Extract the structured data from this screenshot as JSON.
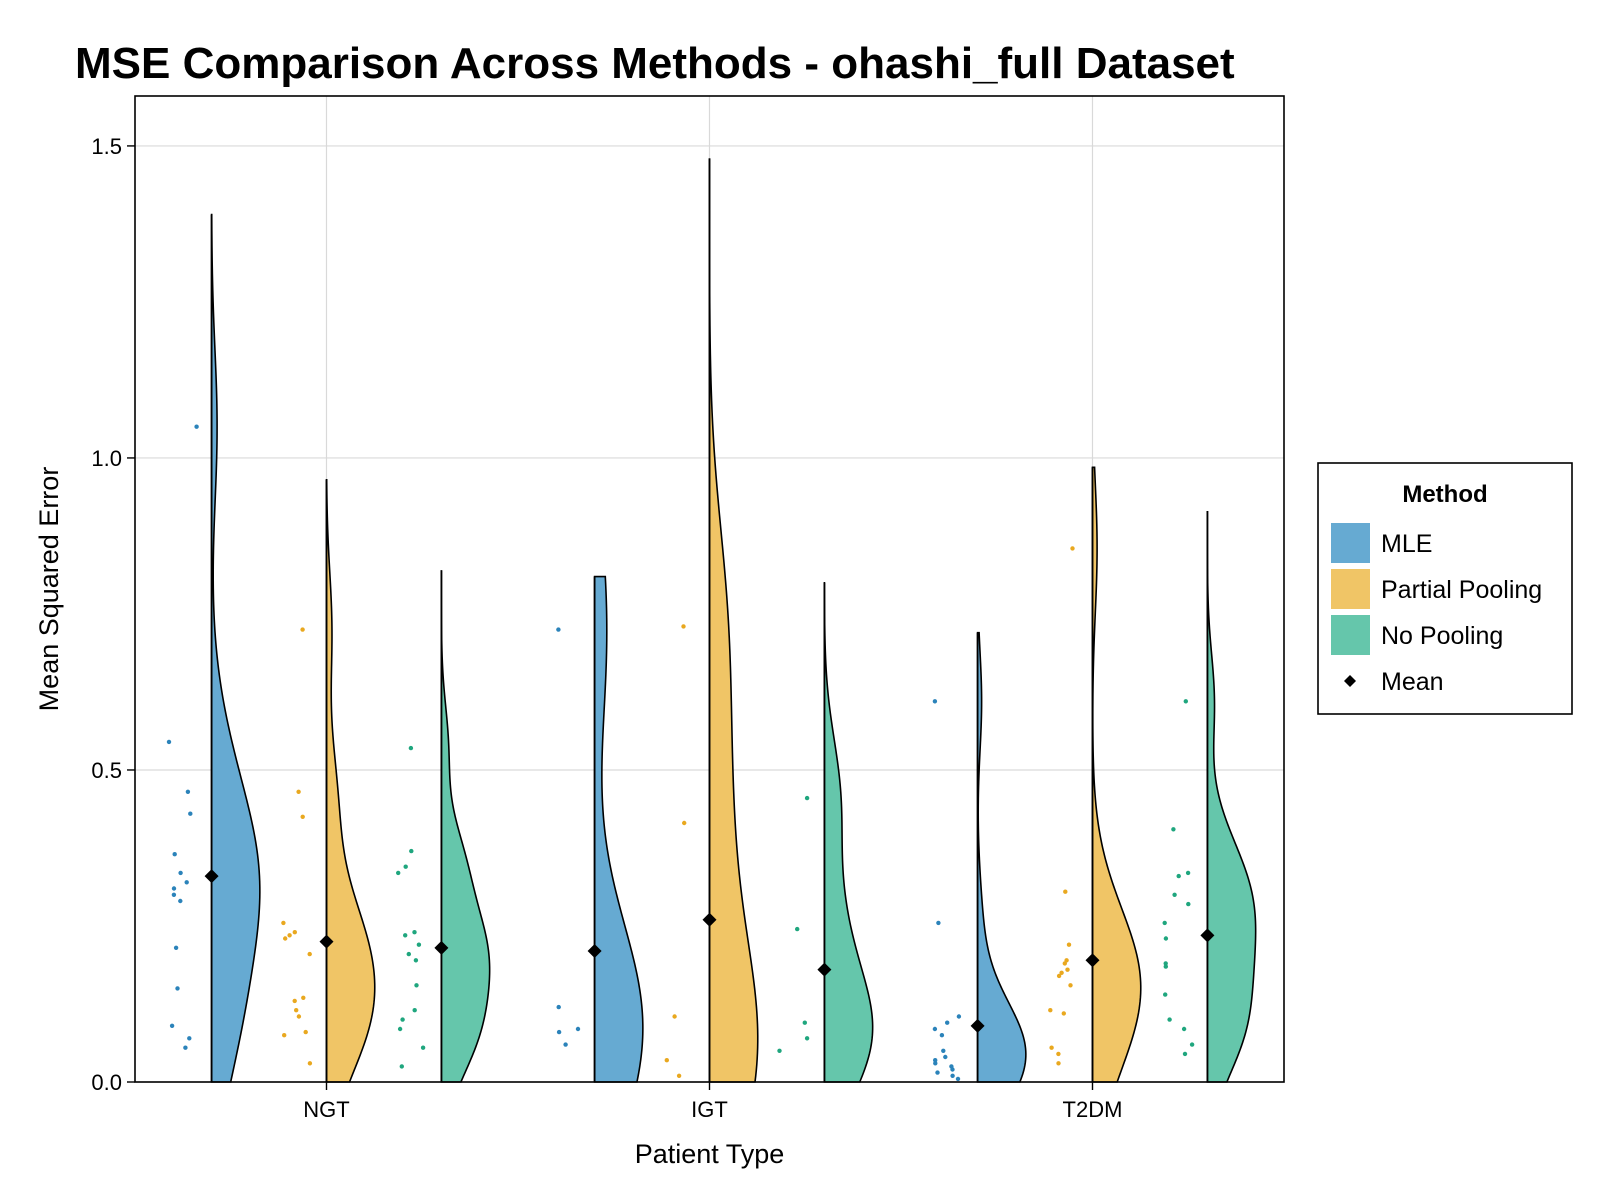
{
  "chart_data": {
    "type": "violin",
    "title": "MSE Comparison Across Methods - ohashi_full Dataset",
    "xlabel": "Patient Type",
    "ylabel": "Mean Squared Error",
    "categories": [
      "NGT",
      "IGT",
      "T2DM"
    ],
    "ylim": [
      0,
      1.58
    ],
    "yticks": [
      "0.0",
      "0.5",
      "1.0",
      "1.5"
    ],
    "grid": true,
    "legend": {
      "title": "Method",
      "placement": "right",
      "entries": [
        {
          "label": "MLE",
          "color": "#66aad2"
        },
        {
          "label": "Partial Pooling",
          "color": "#f0c566"
        },
        {
          "label": "No Pooling",
          "color": "#65c6ab"
        },
        {
          "label": "Mean",
          "marker": "diamond",
          "color": "#000000"
        }
      ]
    },
    "series": [
      {
        "name": "MLE",
        "color": "#66aad2",
        "point_color": "#2b83ba",
        "groups": [
          {
            "category": "NGT",
            "mean": 0.33,
            "max": 1.39,
            "points": [
              1.05,
              0.545,
              0.465,
              0.43,
              0.365,
              0.335,
              0.32,
              0.31,
              0.3,
              0.29,
              0.215,
              0.15,
              0.09,
              0.07,
              0.055
            ]
          },
          {
            "category": "IGT",
            "mean": 0.21,
            "max": 0.81,
            "points": [
              0.725,
              0.12,
              0.085,
              0.08,
              0.06
            ]
          },
          {
            "category": "T2DM",
            "mean": 0.09,
            "max": 0.72,
            "points": [
              0.61,
              0.255,
              0.105,
              0.095,
              0.085,
              0.075,
              0.05,
              0.04,
              0.035,
              0.03,
              0.025,
              0.02,
              0.015,
              0.01,
              0.005
            ]
          }
        ]
      },
      {
        "name": "Partial Pooling",
        "color": "#f0c566",
        "point_color": "#e9a81f",
        "groups": [
          {
            "category": "NGT",
            "mean": 0.225,
            "max": 0.965,
            "points": [
              0.725,
              0.465,
              0.425,
              0.255,
              0.24,
              0.235,
              0.23,
              0.205,
              0.135,
              0.13,
              0.115,
              0.105,
              0.08,
              0.075,
              0.03
            ]
          },
          {
            "category": "IGT",
            "mean": 0.26,
            "max": 1.48,
            "points": [
              0.73,
              0.415,
              0.105,
              0.035,
              0.01
            ]
          },
          {
            "category": "T2DM",
            "mean": 0.195,
            "max": 0.985,
            "points": [
              0.855,
              0.305,
              0.22,
              0.195,
              0.19,
              0.18,
              0.175,
              0.17,
              0.155,
              0.115,
              0.11,
              0.055,
              0.045,
              0.03
            ]
          }
        ]
      },
      {
        "name": "No Pooling",
        "color": "#65c6ab",
        "point_color": "#1fa67e",
        "groups": [
          {
            "category": "NGT",
            "mean": 0.215,
            "max": 0.82,
            "points": [
              0.535,
              0.37,
              0.345,
              0.335,
              0.24,
              0.235,
              0.22,
              0.205,
              0.195,
              0.155,
              0.115,
              0.1,
              0.085,
              0.055,
              0.025
            ]
          },
          {
            "category": "IGT",
            "mean": 0.18,
            "max": 0.8,
            "points": [
              0.455,
              0.245,
              0.095,
              0.07,
              0.05
            ]
          },
          {
            "category": "T2DM",
            "mean": 0.235,
            "max": 0.915,
            "points": [
              0.61,
              0.405,
              0.335,
              0.33,
              0.3,
              0.285,
              0.255,
              0.23,
              0.19,
              0.185,
              0.14,
              0.1,
              0.085,
              0.06,
              0.045
            ]
          }
        ]
      }
    ]
  }
}
